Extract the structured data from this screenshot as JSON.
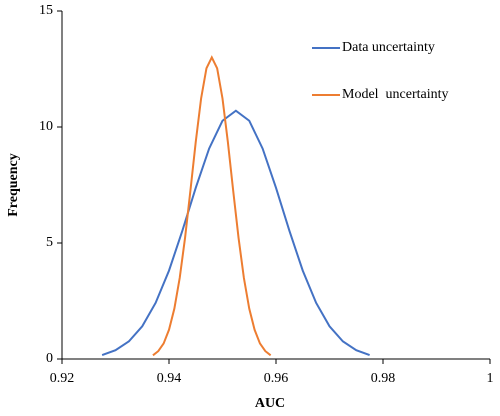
{
  "chart_data": {
    "type": "line",
    "xlabel": "AUC",
    "ylabel": "Frequency",
    "xlim": [
      0.92,
      1
    ],
    "xticks": [
      0.92,
      0.94,
      0.96,
      0.98,
      1
    ],
    "ylim": [
      0,
      15
    ],
    "yticks": [
      0,
      5,
      10,
      15
    ],
    "grid": false,
    "legend": "upper right",
    "series": [
      {
        "name": "Data uncertainty",
        "color": "#4472c4",
        "x": [
          0.9275,
          0.93,
          0.9325,
          0.935,
          0.9375,
          0.94,
          0.9425,
          0.945,
          0.9475,
          0.95,
          0.9525,
          0.955,
          0.9575,
          0.96,
          0.9625,
          0.965,
          0.9675,
          0.97,
          0.9725,
          0.975,
          0.9775
        ],
        "values": [
          0.17,
          0.38,
          0.76,
          1.41,
          2.42,
          3.81,
          5.53,
          7.38,
          9.07,
          10.27,
          10.7,
          10.27,
          9.07,
          7.38,
          5.53,
          3.81,
          2.42,
          1.41,
          0.76,
          0.38,
          0.17
        ]
      },
      {
        "name": "Model  uncertainty",
        "color": "#ed7d31",
        "x": [
          0.937,
          0.938,
          0.939,
          0.94,
          0.941,
          0.942,
          0.943,
          0.944,
          0.945,
          0.946,
          0.947,
          0.948,
          0.949,
          0.95,
          0.951,
          0.952,
          0.953,
          0.954,
          0.955,
          0.956,
          0.957,
          0.958,
          0.959
        ],
        "values": [
          0.16,
          0.34,
          0.67,
          1.26,
          2.17,
          3.49,
          5.22,
          7.25,
          9.36,
          11.23,
          12.53,
          13,
          12.53,
          11.23,
          9.36,
          7.25,
          5.22,
          3.49,
          2.17,
          1.26,
          0.67,
          0.34,
          0.16
        ]
      }
    ]
  }
}
